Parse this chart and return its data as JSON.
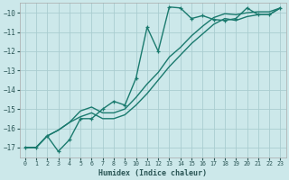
{
  "xlabel": "Humidex (Indice chaleur)",
  "bg_color": "#cce8ea",
  "grid_color": "#aacdd0",
  "line_color": "#1a7a6e",
  "xlim": [
    -0.5,
    23.5
  ],
  "ylim": [
    -17.5,
    -9.5
  ],
  "xticks": [
    0,
    1,
    2,
    3,
    4,
    5,
    6,
    7,
    8,
    9,
    10,
    11,
    12,
    13,
    14,
    15,
    16,
    17,
    18,
    19,
    20,
    21,
    22,
    23
  ],
  "yticks": [
    -17,
    -16,
    -15,
    -14,
    -13,
    -12,
    -11,
    -10
  ],
  "series1_x": [
    0,
    1,
    2,
    3,
    4,
    5,
    6,
    7,
    8,
    9,
    10,
    11,
    12,
    13,
    14,
    15,
    16,
    17,
    18,
    19,
    20,
    21,
    22,
    23
  ],
  "series1_y": [
    -17.0,
    -17.0,
    -16.4,
    -17.2,
    -16.6,
    -15.5,
    -15.5,
    -15.0,
    -14.6,
    -14.8,
    -13.4,
    -10.75,
    -12.0,
    -9.7,
    -9.75,
    -10.3,
    -10.15,
    -10.35,
    -10.4,
    -10.3,
    -9.75,
    -10.1,
    -10.1,
    -9.75
  ],
  "series2_x": [
    0,
    1,
    2,
    3,
    4,
    5,
    6,
    7,
    8,
    9,
    10,
    11,
    12,
    13,
    14,
    15,
    16,
    17,
    18,
    19,
    20,
    21,
    22,
    23
  ],
  "series2_y": [
    -17.0,
    -17.0,
    -16.4,
    -16.1,
    -15.7,
    -15.1,
    -14.9,
    -15.2,
    -15.2,
    -15.0,
    -14.4,
    -13.7,
    -13.1,
    -12.3,
    -11.8,
    -11.2,
    -10.7,
    -10.25,
    -10.05,
    -10.1,
    -10.0,
    -9.95,
    -9.95,
    -9.75
  ],
  "series3_x": [
    0,
    1,
    2,
    3,
    4,
    5,
    6,
    7,
    8,
    9,
    10,
    11,
    12,
    13,
    14,
    15,
    16,
    17,
    18,
    19,
    20,
    21,
    22,
    23
  ],
  "series3_y": [
    -17.0,
    -17.0,
    -16.4,
    -16.1,
    -15.7,
    -15.4,
    -15.2,
    -15.5,
    -15.5,
    -15.3,
    -14.8,
    -14.2,
    -13.5,
    -12.8,
    -12.2,
    -11.6,
    -11.1,
    -10.6,
    -10.3,
    -10.4,
    -10.2,
    -10.1,
    -10.1,
    -9.75
  ]
}
